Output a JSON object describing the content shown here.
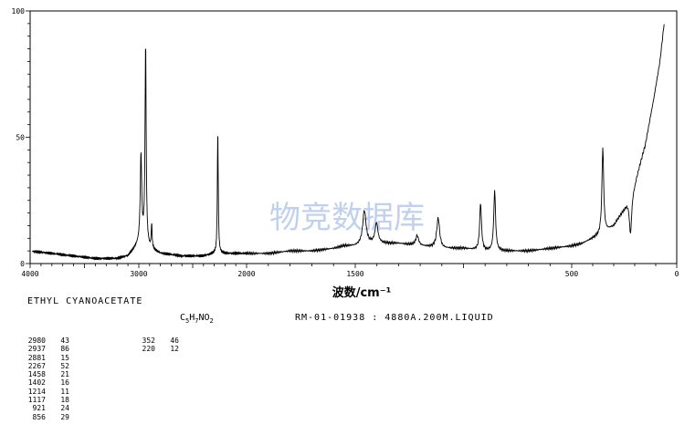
{
  "chart_data": {
    "type": "line",
    "xlabel": "波数/cm⁻¹",
    "ylabel": "",
    "xlim": [
      4000,
      0
    ],
    "ylim": [
      0,
      100
    ],
    "x_ticks": [
      "4000",
      "3000",
      "2000",
      "1500",
      "500",
      "0"
    ],
    "y_ticks": [
      "100",
      "50",
      "0"
    ],
    "watermark": "物竞数据库",
    "grid": false,
    "baseline": [
      [
        4000,
        5
      ],
      [
        3800,
        4
      ],
      [
        3600,
        3
      ],
      [
        3400,
        2
      ],
      [
        3200,
        2
      ],
      [
        3100,
        3
      ],
      [
        3000,
        8
      ],
      [
        2950,
        10
      ],
      [
        2900,
        6
      ],
      [
        2800,
        4
      ],
      [
        2600,
        3
      ],
      [
        2400,
        3
      ],
      [
        2300,
        4
      ],
      [
        2200,
        4
      ],
      [
        2000,
        4
      ],
      [
        1900,
        4
      ],
      [
        1800,
        5
      ],
      [
        1700,
        5
      ],
      [
        1600,
        6
      ],
      [
        1550,
        7
      ],
      [
        1500,
        7
      ],
      [
        1450,
        8
      ],
      [
        1400,
        8
      ],
      [
        1300,
        8
      ],
      [
        1200,
        7
      ],
      [
        1100,
        6
      ],
      [
        1000,
        6
      ],
      [
        900,
        5
      ],
      [
        800,
        5
      ],
      [
        700,
        5
      ],
      [
        600,
        6
      ],
      [
        500,
        7
      ],
      [
        450,
        8
      ],
      [
        400,
        10
      ],
      [
        350,
        12
      ],
      [
        300,
        15
      ],
      [
        250,
        22
      ],
      [
        200,
        32
      ],
      [
        150,
        47
      ],
      [
        110,
        65
      ],
      [
        80,
        80
      ],
      [
        60,
        95
      ]
    ],
    "peaks": [
      {
        "x": 2980,
        "y": 43
      },
      {
        "x": 2937,
        "y": 86
      },
      {
        "x": 2881,
        "y": 15
      },
      {
        "x": 2267,
        "y": 52
      },
      {
        "x": 1458,
        "y": 21
      },
      {
        "x": 1402,
        "y": 16
      },
      {
        "x": 1214,
        "y": 11
      },
      {
        "x": 1117,
        "y": 18
      },
      {
        "x": 921,
        "y": 24
      },
      {
        "x": 856,
        "y": 29
      },
      {
        "x": 352,
        "y": 46
      },
      {
        "x": 220,
        "y": 12
      }
    ]
  },
  "compound_name": "ETHYL CYANOACETATE",
  "formula": {
    "c": "C",
    "c_sub": "5",
    "h": "H",
    "h_sub": "7",
    "rest": "NO",
    "o_sub": "2"
  },
  "record": "RM-01-01938 : 4880A.200M.LIQUID",
  "peak_table": {
    "col1": [
      {
        "x": "2980",
        "y": "43"
      },
      {
        "x": "2937",
        "y": "86"
      },
      {
        "x": "2881",
        "y": "15"
      },
      {
        "x": "2267",
        "y": "52"
      },
      {
        "x": "1458",
        "y": "21"
      },
      {
        "x": "1402",
        "y": "16"
      },
      {
        "x": "1214",
        "y": "11"
      },
      {
        "x": "1117",
        "y": "18"
      },
      {
        "x": "921",
        "y": "24"
      },
      {
        "x": "856",
        "y": "29"
      }
    ],
    "col2": [
      {
        "x": "352",
        "y": "46"
      },
      {
        "x": "220",
        "y": "12"
      }
    ]
  }
}
